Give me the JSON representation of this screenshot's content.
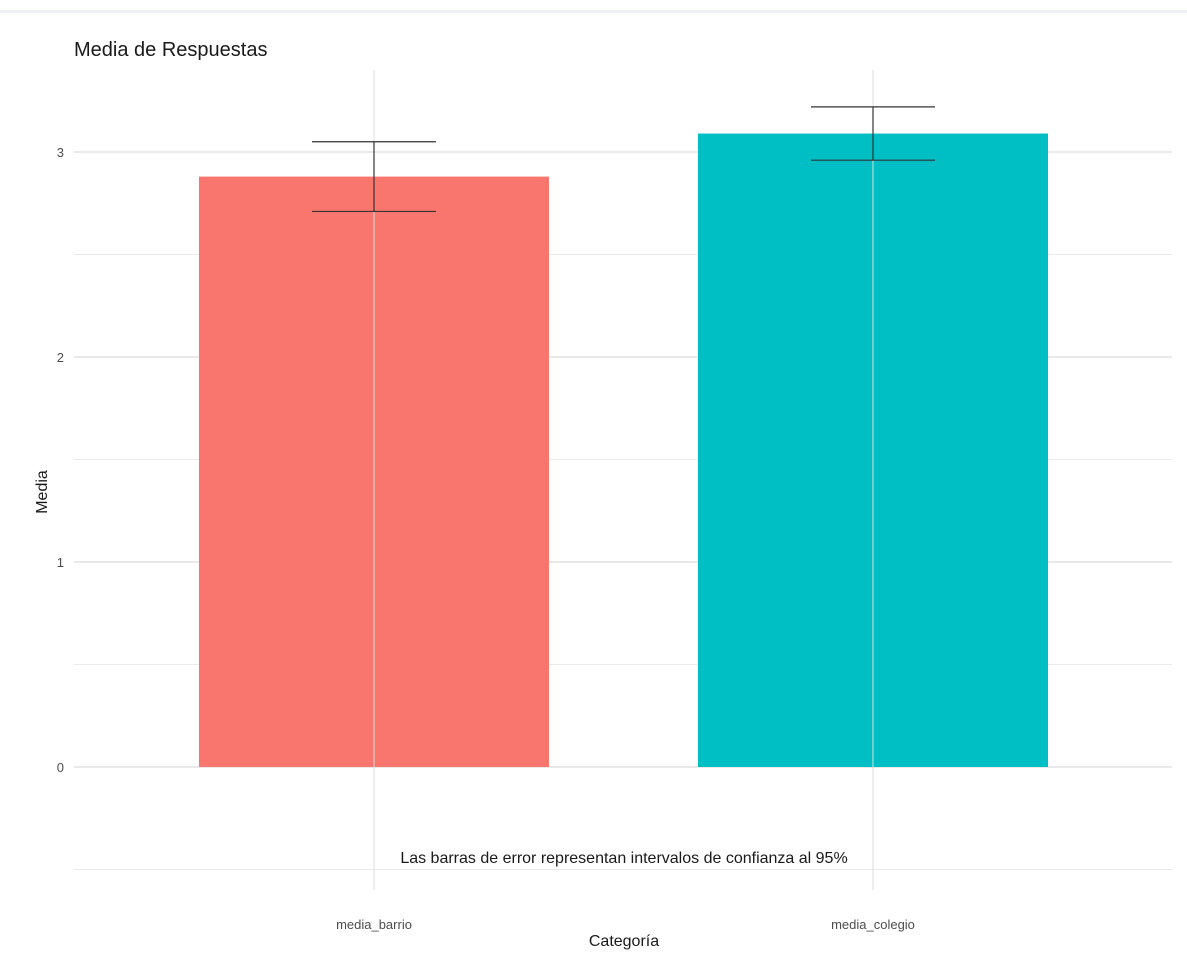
{
  "chart_data": {
    "type": "bar",
    "title": "Media de Respuestas",
    "xlabel": "Categoría",
    "ylabel": "Media",
    "categories": [
      "media_barrio",
      "media_colegio"
    ],
    "values": [
      2.88,
      3.09
    ],
    "error_bars": [
      {
        "category": "media_barrio",
        "lower": 2.71,
        "upper": 3.05
      },
      {
        "category": "media_colegio",
        "lower": 2.96,
        "upper": 3.22
      }
    ],
    "colors": [
      "#f8766d",
      "#00bfc4"
    ],
    "y_ticks": [
      0,
      1,
      2,
      3
    ],
    "ylim": [
      -0.5,
      3.4
    ],
    "grid": true,
    "legend": "none",
    "annotation": "Las barras de error representan intervalos de confianza al 95%"
  }
}
